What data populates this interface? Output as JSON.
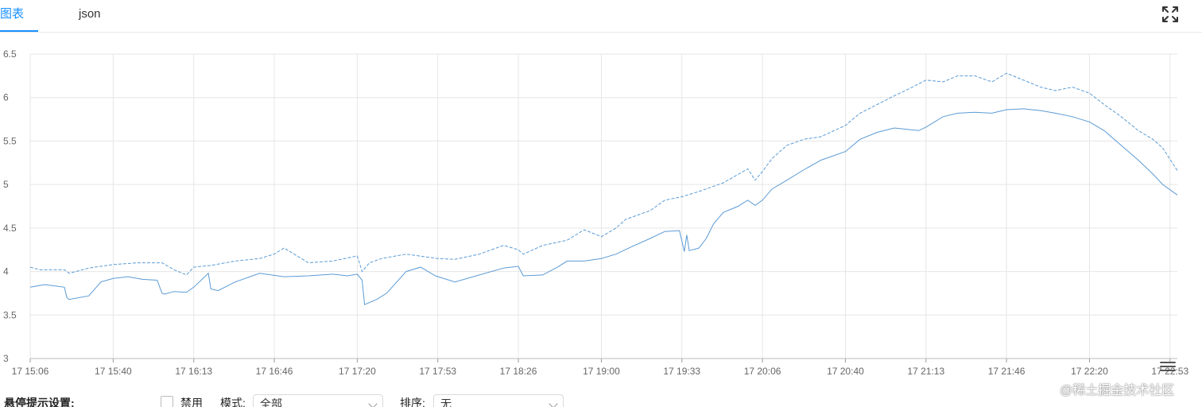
{
  "tabs": [
    {
      "label": "图表",
      "active": true
    },
    {
      "label": "json",
      "active": false
    }
  ],
  "icons": {
    "fullscreen": "expand-arrows-icon",
    "menu": "hamburger-menu-icon"
  },
  "colors": {
    "accent": "#1890ff",
    "series": "#5b9bd5",
    "grid": "#e6e6e6"
  },
  "toolbar": {
    "tooltip_label": "悬停提示设置:",
    "disable_label": "禁用",
    "mode_label": "模式:",
    "mode_value": "全部",
    "sort_label": "排序:",
    "sort_value": "无"
  },
  "watermark": "@稀土掘金技术社区",
  "chart_data": {
    "type": "line",
    "title": "",
    "xlabel": "",
    "ylabel": "",
    "ylim": [
      3,
      6.5
    ],
    "y_ticks": [
      "3",
      "3.5",
      "4",
      "4.5",
      "5",
      "5.5",
      "6",
      "6.5"
    ],
    "x_ticks": [
      "17 15:06",
      "17 15:40",
      "17 16:13",
      "17 16:46",
      "17 17:20",
      "17 17:53",
      "17 18:26",
      "17 19:00",
      "17 19:33",
      "17 20:06",
      "17 20:40",
      "17 21:13",
      "17 21:46",
      "17 22:20",
      "17 22:53"
    ],
    "x_tick_minutes": [
      906,
      940,
      973,
      1006,
      1040,
      1073,
      1106,
      1140,
      1173,
      1206,
      1240,
      1273,
      1306,
      1340,
      1373
    ],
    "xlim_minutes": [
      906,
      1376
    ],
    "grid": true,
    "series": [
      {
        "style": "solid",
        "x_minutes": [
          906,
          912,
          920,
          921,
          922,
          930,
          935,
          940,
          946,
          952,
          958,
          960,
          961,
          965,
          970,
          973,
          979,
          980,
          983,
          990,
          1000,
          1010,
          1020,
          1030,
          1036,
          1040,
          1042,
          1043,
          1048,
          1052,
          1060,
          1066,
          1072,
          1080,
          1090,
          1100,
          1106,
          1108,
          1116,
          1122,
          1126,
          1133,
          1140,
          1146,
          1152,
          1160,
          1166,
          1172,
          1174,
          1175,
          1176,
          1180,
          1183,
          1186,
          1190,
          1196,
          1200,
          1203,
          1206,
          1210,
          1216,
          1223,
          1230,
          1240,
          1246,
          1253,
          1260,
          1270,
          1273,
          1280,
          1286,
          1293,
          1300,
          1306,
          1313,
          1320,
          1326,
          1333,
          1340,
          1346,
          1353,
          1360,
          1366,
          1370,
          1376
        ],
        "y": [
          3.82,
          3.85,
          3.82,
          3.7,
          3.68,
          3.72,
          3.88,
          3.92,
          3.94,
          3.91,
          3.9,
          3.75,
          3.74,
          3.77,
          3.76,
          3.82,
          3.98,
          3.8,
          3.78,
          3.88,
          3.98,
          3.94,
          3.95,
          3.97,
          3.95,
          3.97,
          3.9,
          3.62,
          3.68,
          3.75,
          4.0,
          4.05,
          3.95,
          3.88,
          3.96,
          4.04,
          4.06,
          3.95,
          3.96,
          4.05,
          4.12,
          4.12,
          4.15,
          4.2,
          4.28,
          4.38,
          4.46,
          4.47,
          4.23,
          4.42,
          4.24,
          4.27,
          4.38,
          4.55,
          4.68,
          4.75,
          4.82,
          4.76,
          4.82,
          4.95,
          5.05,
          5.17,
          5.28,
          5.38,
          5.52,
          5.6,
          5.65,
          5.62,
          5.66,
          5.78,
          5.82,
          5.83,
          5.82,
          5.86,
          5.87,
          5.85,
          5.82,
          5.78,
          5.72,
          5.62,
          5.45,
          5.28,
          5.12,
          5.0,
          4.88
        ]
      },
      {
        "style": "dashed",
        "x_minutes": [
          906,
          910,
          920,
          922,
          930,
          940,
          950,
          960,
          965,
          970,
          973,
          980,
          990,
          1000,
          1006,
          1010,
          1020,
          1030,
          1040,
          1042,
          1045,
          1050,
          1060,
          1073,
          1080,
          1090,
          1100,
          1106,
          1108,
          1116,
          1126,
          1133,
          1140,
          1146,
          1150,
          1160,
          1166,
          1173,
          1180,
          1190,
          1200,
          1203,
          1206,
          1210,
          1216,
          1223,
          1230,
          1240,
          1246,
          1253,
          1260,
          1266,
          1273,
          1280,
          1286,
          1293,
          1300,
          1306,
          1313,
          1320,
          1326,
          1333,
          1340,
          1346,
          1353,
          1360,
          1366,
          1370,
          1376
        ],
        "y": [
          4.05,
          4.02,
          4.02,
          3.98,
          4.04,
          4.08,
          4.1,
          4.1,
          4.02,
          3.96,
          4.05,
          4.07,
          4.12,
          4.15,
          4.2,
          4.27,
          4.1,
          4.12,
          4.18,
          4.0,
          4.1,
          4.15,
          4.2,
          4.15,
          4.14,
          4.2,
          4.3,
          4.25,
          4.2,
          4.3,
          4.36,
          4.48,
          4.4,
          4.5,
          4.6,
          4.7,
          4.82,
          4.86,
          4.92,
          5.02,
          5.18,
          5.05,
          5.15,
          5.3,
          5.45,
          5.52,
          5.55,
          5.68,
          5.82,
          5.92,
          6.02,
          6.1,
          6.2,
          6.18,
          6.25,
          6.25,
          6.18,
          6.28,
          6.2,
          6.12,
          6.08,
          6.12,
          6.05,
          5.92,
          5.78,
          5.62,
          5.52,
          5.42,
          5.16
        ]
      }
    ]
  }
}
